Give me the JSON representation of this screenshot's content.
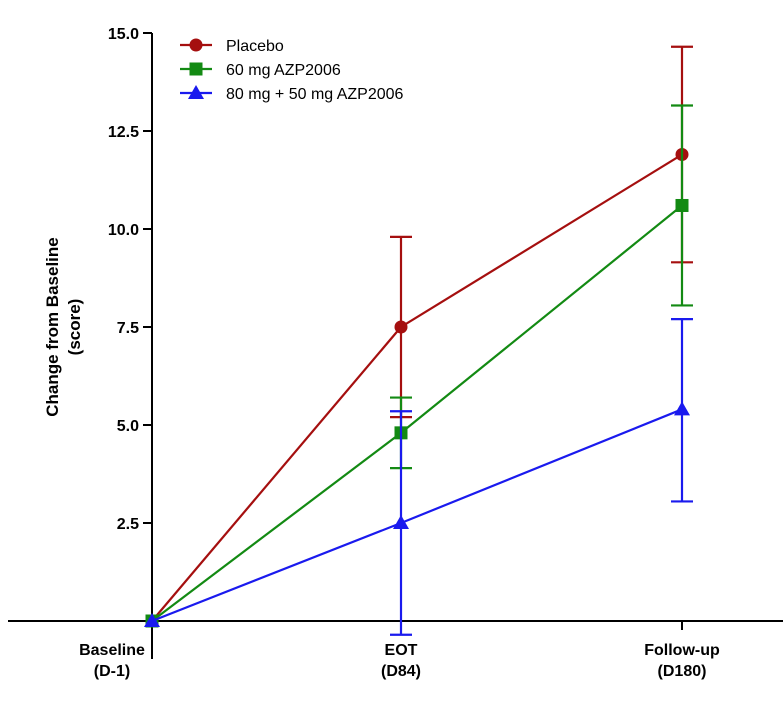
{
  "chart_data": {
    "type": "line",
    "title": "",
    "xlabel": "",
    "ylabel": [
      "Change from Baseline",
      "(score)"
    ],
    "ylim": [
      0,
      15
    ],
    "yticks": [
      "2.5",
      "5.0",
      "7.5",
      "10.0",
      "12.5",
      "15.0"
    ],
    "ytick_values": [
      2.5,
      5.0,
      7.5,
      10.0,
      12.5,
      15.0
    ],
    "categories": [
      [
        "Baseline",
        "(D-1)"
      ],
      [
        "EOT",
        "(D84)"
      ],
      [
        "Follow-up",
        "(D180)"
      ]
    ],
    "legend_position": "top-left",
    "series": [
      {
        "name": "Placebo",
        "color": "#a50f0f",
        "marker": "circle",
        "values": [
          0,
          7.5,
          11.9
        ],
        "err_upper": [
          0,
          9.8,
          14.65
        ],
        "err_lower": [
          0,
          5.2,
          9.15
        ]
      },
      {
        "name": "60 mg AZP2006",
        "color": "#138a13",
        "marker": "square",
        "values": [
          0,
          4.8,
          10.6
        ],
        "err_upper": [
          0,
          5.7,
          13.15
        ],
        "err_lower": [
          0,
          3.9,
          8.05
        ]
      },
      {
        "name": "80 mg + 50 mg AZP2006",
        "color": "#1a1aee",
        "marker": "triangle",
        "values": [
          0,
          2.5,
          5.4
        ],
        "err_upper": [
          0,
          5.35,
          7.7
        ],
        "err_lower": [
          0,
          -0.35,
          3.05
        ]
      }
    ]
  }
}
